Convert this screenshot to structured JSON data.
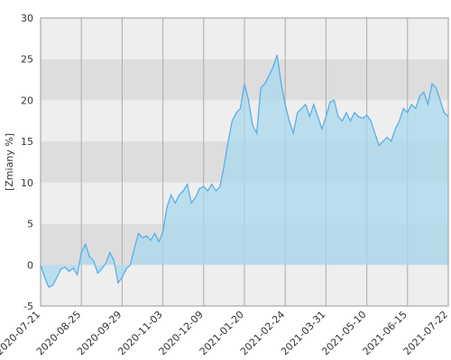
{
  "chart_data": {
    "type": "area",
    "y_label": "[Zmiany %]",
    "categories": [
      "2020-07-21",
      null,
      null,
      null,
      null,
      null,
      null,
      null,
      null,
      null,
      "2020-08-25",
      null,
      null,
      null,
      null,
      null,
      null,
      null,
      null,
      null,
      "2020-09-29",
      null,
      null,
      null,
      null,
      null,
      null,
      null,
      null,
      null,
      "2020-11-03",
      null,
      null,
      null,
      null,
      null,
      null,
      null,
      null,
      null,
      "2020-12-09",
      null,
      null,
      null,
      null,
      null,
      null,
      null,
      null,
      null,
      "2021-01-20",
      null,
      null,
      null,
      null,
      null,
      null,
      null,
      null,
      null,
      "2021-02-24",
      null,
      null,
      null,
      null,
      null,
      null,
      null,
      null,
      null,
      "2021-03-31",
      null,
      null,
      null,
      null,
      null,
      null,
      null,
      null,
      null,
      "2021-05-10",
      null,
      null,
      null,
      null,
      null,
      null,
      null,
      null,
      null,
      "2021-06-15",
      null,
      null,
      null,
      null,
      null,
      null,
      null,
      null,
      null,
      "2021-07-22"
    ],
    "series": [
      {
        "color": "#5aafe6",
        "fill": "#a8d8ee",
        "values": [
          0,
          -1.5,
          -2.7,
          -2.5,
          -1.5,
          -0.5,
          -0.3,
          -0.8,
          -0.4,
          -1.2,
          1.5,
          2.5,
          1.0,
          0.5,
          -1.0,
          -0.5,
          0.2,
          1.5,
          0.5,
          -2.2,
          -1.5,
          -0.5,
          0.0,
          2.0,
          3.8,
          3.3,
          3.5,
          3.0,
          3.8,
          2.8,
          4.0,
          7.0,
          8.5,
          7.5,
          8.5,
          9.0,
          9.8,
          7.5,
          8.2,
          9.3,
          9.5,
          9.0,
          9.8,
          9.0,
          9.5,
          12.0,
          15.0,
          17.5,
          18.5,
          19.0,
          22.0,
          20.0,
          17.0,
          16.0,
          21.5,
          22.0,
          23.0,
          24.0,
          25.5,
          22.0,
          19.5,
          17.5,
          16.0,
          18.5,
          19.0,
          19.5,
          18.0,
          19.5,
          18.0,
          16.5,
          18.0,
          19.8,
          20.0,
          18.0,
          17.5,
          18.5,
          17.5,
          18.5,
          18.0,
          17.8,
          18.2,
          17.5,
          16.0,
          14.5,
          15.0,
          15.5,
          15.0,
          16.5,
          17.5,
          19.0,
          18.5,
          19.5,
          19.0,
          20.5,
          21.0,
          19.5,
          22.0,
          21.5,
          20.0,
          18.5,
          18.0
        ]
      }
    ],
    "ylim": [
      -5,
      30
    ],
    "yticks": [
      -5,
      0,
      5,
      10,
      15,
      20,
      25,
      30
    ],
    "band_colors": [
      "#eeeeee",
      "#dddddd"
    ],
    "grid": true
  }
}
